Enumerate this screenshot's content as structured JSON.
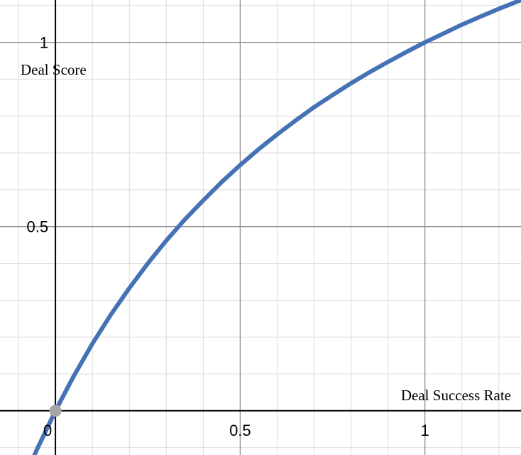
{
  "chart_data": {
    "type": "line",
    "title": "",
    "xlabel": "Deal Success Rate",
    "ylabel": "Deal Score",
    "xlim": [
      -0.15,
      1.26
    ],
    "ylim": [
      -0.12,
      1.115
    ],
    "grid": true,
    "legend": "none",
    "x_ticks": [
      "0",
      "0.5",
      "1"
    ],
    "y_ticks": [
      "0.5",
      "1"
    ],
    "series": [
      {
        "color": "#4472b4",
        "x": [
          -0.07,
          -0.05,
          0,
          0.05,
          0.1,
          0.15,
          0.2,
          0.25,
          0.3,
          0.35,
          0.4,
          0.45,
          0.5,
          0.55,
          0.6,
          0.65,
          0.7,
          0.75,
          0.8,
          0.85,
          0.9,
          0.95,
          1.0,
          1.05,
          1.1,
          1.15,
          1.2,
          1.26
        ],
        "values": [
          -0.15,
          -0.105,
          0,
          0.095,
          0.182,
          0.261,
          0.333,
          0.4,
          0.462,
          0.519,
          0.571,
          0.621,
          0.667,
          0.71,
          0.75,
          0.788,
          0.824,
          0.857,
          0.889,
          0.919,
          0.947,
          0.974,
          1.0,
          1.024,
          1.048,
          1.07,
          1.091,
          1.115
        ]
      }
    ],
    "points": [
      {
        "x": 0,
        "y": 0,
        "color": "#a6a6a6"
      }
    ]
  }
}
